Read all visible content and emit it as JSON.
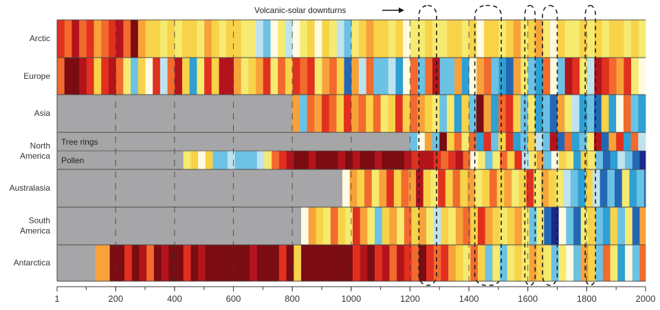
{
  "chart_data": {
    "type": "heatmap",
    "annotation": "Volcanic-solar downturns",
    "x_ticks": [
      "1",
      "200",
      "400",
      "600",
      "800",
      "1000",
      "1200",
      "1400",
      "1600",
      "1800",
      "2000"
    ],
    "xlim": [
      1,
      2000
    ],
    "colorscale": [
      "#7a0c12",
      "#b3141c",
      "#e23020",
      "#f26a2e",
      "#f7a23a",
      "#f8d248",
      "#f6ea70",
      "#fffbe2",
      "#bfe3ee",
      "#6cc2e4",
      "#2ea0d4",
      "#2468b4",
      "#182a8c"
    ],
    "missing_color": "#a6a6a8",
    "downturns": [
      [
        1230,
        1290
      ],
      [
        1420,
        1510
      ],
      [
        1590,
        1625
      ],
      [
        1650,
        1700
      ],
      [
        1795,
        1830
      ]
    ],
    "rows": [
      {
        "label": "Arctic",
        "start": 1,
        "values": [
          2,
          3,
          1,
          3,
          2,
          4,
          3,
          2,
          1,
          3,
          0,
          4,
          5,
          5,
          6,
          5,
          6,
          5,
          5,
          6,
          4,
          5,
          6,
          5,
          5,
          6,
          6,
          8,
          9,
          7,
          6,
          8,
          7,
          6,
          5,
          7,
          5,
          6,
          8,
          9,
          6,
          5,
          4,
          5,
          5,
          6,
          5,
          7,
          6,
          6,
          5,
          6,
          6,
          5,
          5,
          6,
          5,
          7,
          5,
          5,
          6,
          5,
          4,
          6,
          5,
          4,
          6,
          7,
          5,
          6,
          6,
          5,
          6,
          5,
          6,
          5,
          5,
          6,
          5,
          6,
          7,
          3,
          1,
          0
        ]
      },
      {
        "label": "Europe",
        "start": 1,
        "values": [
          3,
          0,
          0,
          1,
          2,
          5,
          2,
          1,
          3,
          6,
          9,
          5,
          7,
          2,
          8,
          3,
          1,
          5,
          10,
          6,
          2,
          5,
          1,
          1,
          4,
          6,
          5,
          4,
          2,
          6,
          3,
          5,
          2,
          3,
          2,
          6,
          4,
          3,
          5,
          11,
          4,
          8,
          3,
          9,
          9,
          8,
          10,
          7,
          3,
          9,
          3,
          1,
          9,
          9,
          4,
          10,
          7,
          4,
          3,
          9,
          10,
          11,
          4,
          6,
          9,
          10,
          3,
          7,
          9,
          1,
          2,
          6,
          8,
          1,
          2,
          3,
          4,
          2,
          6,
          7,
          2,
          1,
          0
        ]
      },
      {
        "label": "Asia",
        "start": 800,
        "values": [
          4,
          9,
          3,
          4,
          2,
          3,
          5,
          2,
          4,
          3,
          5,
          3,
          6,
          5,
          2,
          5,
          3,
          4,
          5,
          6,
          9,
          6,
          10,
          5,
          9,
          0,
          4,
          10,
          3,
          2,
          5,
          9,
          6,
          10,
          9,
          11,
          4,
          6,
          8,
          10,
          9,
          11,
          5,
          10,
          7,
          3,
          9,
          10,
          7,
          11,
          9,
          4,
          7,
          9,
          8,
          6,
          11,
          2,
          8,
          0
        ]
      },
      {
        "label": "North America (Tree rings)",
        "sublabel": "Tree rings",
        "start": 1200,
        "values": [
          9,
          7,
          4,
          9,
          0,
          5,
          3,
          6,
          3,
          10,
          2,
          9,
          5,
          2,
          10,
          9,
          5,
          8,
          9,
          1,
          11,
          3,
          10,
          9,
          6,
          1,
          11,
          4,
          2,
          10,
          3,
          8,
          4,
          9,
          12,
          2,
          5,
          3,
          1,
          6
        ]
      },
      {
        "label": "North America (Pollen)",
        "sublabel": "Pollen",
        "start": 430,
        "values": [
          6,
          5,
          7,
          5,
          9,
          9,
          8,
          9,
          9,
          9,
          8,
          6,
          3,
          2,
          1,
          0,
          0,
          1,
          0,
          0,
          0,
          1,
          0,
          1,
          0,
          0,
          1,
          0,
          0,
          0,
          1,
          2,
          1,
          1,
          2,
          3,
          2,
          1,
          3,
          7,
          6,
          9,
          6,
          3,
          5,
          2,
          8,
          6,
          4,
          9,
          7,
          5,
          6,
          10,
          5,
          6,
          9,
          11,
          10,
          8,
          9,
          11,
          12,
          10,
          5,
          9,
          11,
          12,
          10,
          11,
          9,
          12,
          10,
          12,
          11,
          3,
          9,
          12,
          9
        ]
      },
      {
        "label": "Australasia",
        "start": 970,
        "values": [
          7,
          4,
          5,
          3,
          6,
          4,
          2,
          5,
          3,
          4,
          1,
          5,
          6,
          2,
          5,
          3,
          5,
          4,
          6,
          5,
          3,
          5,
          4,
          6,
          5,
          2,
          6,
          4,
          5,
          6,
          8,
          9,
          10,
          5,
          8,
          11,
          9,
          11,
          6,
          10,
          9,
          11,
          5,
          9,
          11,
          10,
          8,
          9,
          11,
          6,
          9,
          11,
          4,
          9,
          10,
          5,
          9,
          10,
          6,
          9,
          10,
          4,
          6,
          9,
          3,
          2,
          0
        ]
      },
      {
        "label": "South America",
        "start": 830,
        "values": [
          7,
          4,
          5,
          6,
          3,
          5,
          6,
          2,
          4,
          6,
          9,
          5,
          4,
          6,
          3,
          5,
          4,
          6,
          8,
          5,
          6,
          4,
          3,
          5,
          2,
          4,
          5,
          6,
          5,
          4,
          6,
          9,
          6,
          11,
          12,
          7,
          9,
          11,
          6,
          5,
          9,
          10,
          5,
          9,
          6,
          11,
          4,
          9,
          10,
          6,
          9,
          3,
          10,
          4,
          9,
          11,
          5,
          9,
          2,
          11,
          10,
          9,
          4,
          2,
          3
        ]
      },
      {
        "label": "Antarctica",
        "start": 130,
        "values": [
          4,
          4,
          0,
          0,
          2,
          0,
          1,
          3,
          0,
          1,
          0,
          0,
          2,
          0,
          1,
          0,
          0,
          0,
          0,
          0,
          0,
          1,
          0,
          0,
          0,
          2,
          0,
          5,
          0,
          0,
          0,
          0,
          0,
          0,
          0,
          2,
          1,
          0,
          2,
          1,
          3,
          1,
          2,
          3,
          0,
          2,
          3,
          2,
          4,
          5,
          6,
          3,
          5,
          9,
          6,
          9,
          6,
          5,
          6,
          4,
          5,
          6,
          9,
          6,
          7,
          9,
          4,
          5,
          9,
          3,
          6,
          10,
          7,
          9,
          3,
          10,
          9,
          4,
          10,
          11,
          9,
          4,
          10,
          6,
          1,
          3
        ]
      }
    ],
    "row_labels": [
      {
        "lines": [
          "Arctic"
        ]
      },
      {
        "lines": [
          "Europe"
        ]
      },
      {
        "lines": [
          "Asia"
        ]
      },
      {
        "lines": [
          "North",
          "America"
        ]
      },
      {
        "lines": [
          "Australasia"
        ]
      },
      {
        "lines": [
          "South",
          "America"
        ]
      },
      {
        "lines": [
          "Antarctica"
        ]
      }
    ]
  }
}
